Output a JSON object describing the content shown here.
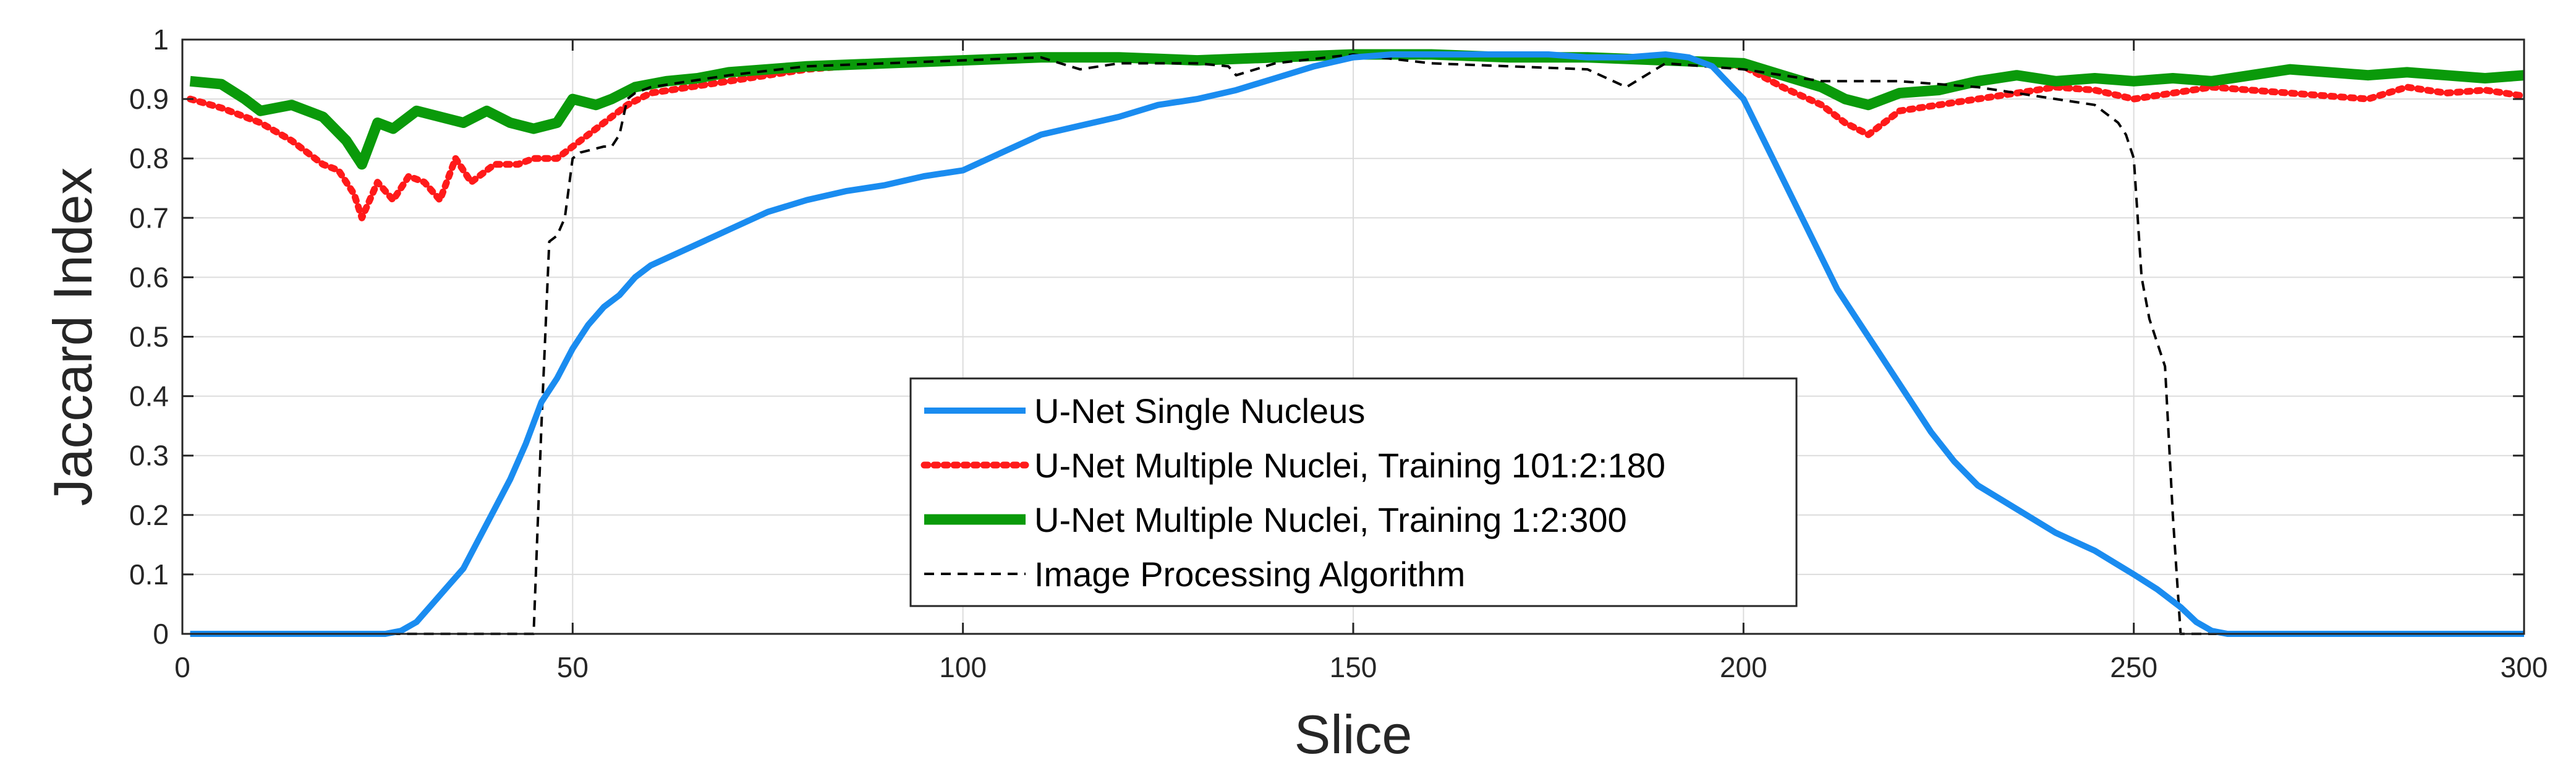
{
  "chart_data": {
    "type": "line",
    "title": "",
    "xlabel": "Slice",
    "ylabel": "Jaccard Index",
    "xlim": [
      0,
      300
    ],
    "ylim": [
      0,
      1
    ],
    "xticks": [
      0,
      50,
      100,
      150,
      200,
      250,
      300
    ],
    "yticks": [
      0,
      0.1,
      0.2,
      0.3,
      0.4,
      0.5,
      0.6,
      0.7,
      0.8,
      0.9,
      1
    ],
    "ytick_labels": [
      "0",
      "0.1",
      "0.2",
      "0.3",
      "0.4",
      "0.5",
      "0.6",
      "0.7",
      "0.8",
      "0.9",
      "1"
    ],
    "grid": true,
    "legend_position": "center-bottom",
    "series": [
      {
        "name": "U-Net Single Nucleus",
        "color": "#1a8cf0",
        "style": "solid",
        "x": [
          1,
          10,
          20,
          26,
          28,
          30,
          32,
          34,
          36,
          38,
          40,
          42,
          44,
          46,
          48,
          50,
          52,
          54,
          56,
          58,
          60,
          65,
          70,
          75,
          80,
          85,
          90,
          95,
          100,
          105,
          110,
          115,
          120,
          125,
          130,
          135,
          140,
          145,
          150,
          155,
          160,
          165,
          170,
          175,
          180,
          185,
          190,
          193,
          196,
          200,
          203,
          206,
          209,
          212,
          215,
          218,
          221,
          224,
          227,
          230,
          235,
          240,
          245,
          250,
          253,
          256,
          258,
          260,
          262,
          270,
          280,
          290,
          300
        ],
        "y": [
          0,
          0,
          0,
          0,
          0.005,
          0.02,
          0.05,
          0.08,
          0.11,
          0.16,
          0.21,
          0.26,
          0.32,
          0.39,
          0.43,
          0.48,
          0.52,
          0.55,
          0.57,
          0.6,
          0.62,
          0.65,
          0.68,
          0.71,
          0.73,
          0.745,
          0.755,
          0.77,
          0.78,
          0.81,
          0.84,
          0.855,
          0.87,
          0.89,
          0.9,
          0.915,
          0.935,
          0.955,
          0.97,
          0.975,
          0.975,
          0.975,
          0.975,
          0.975,
          0.97,
          0.97,
          0.975,
          0.97,
          0.955,
          0.9,
          0.82,
          0.74,
          0.66,
          0.58,
          0.52,
          0.46,
          0.4,
          0.34,
          0.29,
          0.25,
          0.21,
          0.17,
          0.14,
          0.1,
          0.075,
          0.045,
          0.02,
          0.005,
          0,
          0,
          0,
          0,
          0
        ]
      },
      {
        "name": "U-Net Multiple Nuclei, Training 101:2:180",
        "color": "#ff1a1a",
        "style": "dotted",
        "x": [
          1,
          5,
          10,
          14,
          18,
          20,
          22,
          23,
          25,
          27,
          29,
          31,
          33,
          35,
          37,
          40,
          43,
          45,
          48,
          50,
          52,
          55,
          57,
          60,
          65,
          70,
          75,
          80,
          90,
          100,
          110,
          120,
          130,
          140,
          150,
          160,
          170,
          180,
          190,
          200,
          205,
          210,
          213,
          216,
          220,
          225,
          230,
          235,
          240,
          245,
          250,
          255,
          260,
          265,
          270,
          275,
          280,
          285,
          290,
          295,
          300
        ],
        "y": [
          0.9,
          0.885,
          0.86,
          0.83,
          0.79,
          0.78,
          0.74,
          0.7,
          0.76,
          0.73,
          0.77,
          0.76,
          0.73,
          0.8,
          0.76,
          0.79,
          0.79,
          0.8,
          0.8,
          0.82,
          0.84,
          0.87,
          0.89,
          0.91,
          0.92,
          0.93,
          0.94,
          0.95,
          0.96,
          0.965,
          0.97,
          0.97,
          0.965,
          0.97,
          0.975,
          0.975,
          0.97,
          0.97,
          0.965,
          0.955,
          0.92,
          0.89,
          0.86,
          0.84,
          0.88,
          0.89,
          0.9,
          0.91,
          0.92,
          0.915,
          0.9,
          0.91,
          0.92,
          0.915,
          0.91,
          0.905,
          0.9,
          0.92,
          0.91,
          0.915,
          0.905
        ]
      },
      {
        "name": "U-Net Multiple Nuclei, Training 1:2:300",
        "color": "#0a9a0a",
        "style": "thick",
        "x": [
          1,
          5,
          8,
          10,
          14,
          18,
          21,
          23,
          25,
          27,
          30,
          33,
          36,
          39,
          42,
          45,
          48,
          50,
          53,
          55,
          58,
          62,
          66,
          70,
          75,
          80,
          90,
          100,
          110,
          120,
          130,
          140,
          150,
          160,
          170,
          180,
          190,
          200,
          205,
          210,
          213,
          216,
          220,
          225,
          230,
          235,
          240,
          245,
          250,
          255,
          260,
          265,
          270,
          275,
          280,
          285,
          290,
          295,
          300
        ],
        "y": [
          0.93,
          0.925,
          0.9,
          0.88,
          0.89,
          0.87,
          0.83,
          0.79,
          0.86,
          0.85,
          0.88,
          0.87,
          0.86,
          0.88,
          0.86,
          0.85,
          0.86,
          0.9,
          0.89,
          0.9,
          0.92,
          0.93,
          0.935,
          0.945,
          0.95,
          0.955,
          0.96,
          0.965,
          0.97,
          0.97,
          0.965,
          0.97,
          0.975,
          0.975,
          0.97,
          0.97,
          0.965,
          0.96,
          0.94,
          0.92,
          0.9,
          0.89,
          0.91,
          0.915,
          0.93,
          0.94,
          0.93,
          0.935,
          0.93,
          0.935,
          0.93,
          0.94,
          0.95,
          0.945,
          0.94,
          0.945,
          0.94,
          0.935,
          0.94
        ]
      },
      {
        "name": "Image Processing Algorithm",
        "color": "#000000",
        "style": "dashed",
        "x": [
          1,
          45,
          46,
          47,
          48,
          49,
          50,
          51,
          54,
          55,
          56,
          57,
          58,
          60,
          70,
          80,
          90,
          100,
          110,
          115,
          120,
          130,
          134,
          135,
          140,
          150,
          160,
          170,
          180,
          185,
          190,
          200,
          205,
          210,
          220,
          230,
          240,
          245,
          248,
          249,
          250,
          251,
          252,
          253,
          254,
          255,
          256,
          260,
          300
        ],
        "y": [
          0,
          0,
          0.35,
          0.66,
          0.67,
          0.7,
          0.8,
          0.81,
          0.82,
          0.82,
          0.84,
          0.9,
          0.91,
          0.92,
          0.94,
          0.955,
          0.96,
          0.965,
          0.97,
          0.95,
          0.96,
          0.96,
          0.955,
          0.94,
          0.96,
          0.975,
          0.96,
          0.955,
          0.95,
          0.92,
          0.96,
          0.95,
          0.94,
          0.93,
          0.93,
          0.92,
          0.9,
          0.89,
          0.86,
          0.84,
          0.8,
          0.6,
          0.53,
          0.49,
          0.45,
          0.2,
          0,
          0,
          0
        ]
      }
    ]
  }
}
